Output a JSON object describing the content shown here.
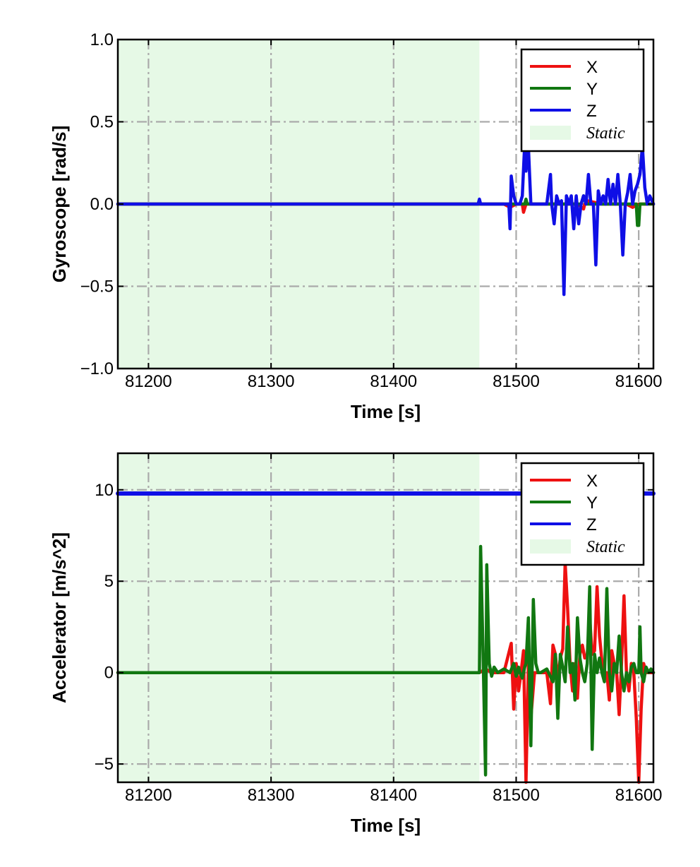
{
  "chart_data": [
    {
      "type": "line",
      "id": "gyro",
      "xlabel": "Time [s]",
      "ylabel": "Gyroscope [rad/s]",
      "xlim": [
        81175,
        81612
      ],
      "ylim": [
        -1.0,
        1.0
      ],
      "xticks": [
        81200,
        81300,
        81400,
        81500,
        81600
      ],
      "xtick_labels": [
        "81200",
        "81300",
        "81400",
        "81500",
        "81600"
      ],
      "yticks": [
        1.0,
        0.5,
        0.0,
        -0.5,
        -1.0
      ],
      "ytick_labels": [
        "1.0",
        "0.5",
        "0.0",
        "−0.5",
        "−1.0"
      ],
      "grid": true,
      "static_region": [
        81175,
        81470
      ],
      "legend": {
        "placement": "upper right",
        "entries": [
          {
            "label": "X",
            "color": "#ee1111",
            "kind": "line"
          },
          {
            "label": "Y",
            "color": "#117711",
            "kind": "line"
          },
          {
            "label": "Z",
            "color": "#0f0fe6",
            "kind": "line"
          },
          {
            "label": "Static",
            "color": "#e6f9e6",
            "kind": "patch"
          }
        ]
      },
      "series": [
        {
          "name": "X",
          "color": "#ee1111",
          "x": [
            81175,
            81470,
            81490,
            81495,
            81500,
            81505,
            81506,
            81508,
            81525,
            81540,
            81550,
            81555,
            81556,
            81558,
            81570,
            81590,
            81595,
            81600,
            81612
          ],
          "values": [
            0,
            0,
            0,
            -0.02,
            0,
            0,
            -0.05,
            0,
            0,
            0,
            0,
            -0.03,
            0,
            0.02,
            0,
            0,
            -0.02,
            0,
            0
          ]
        },
        {
          "name": "Y",
          "color": "#117711",
          "x": [
            81175,
            81470,
            81500,
            81507,
            81508,
            81509,
            81530,
            81545,
            81553,
            81555,
            81557,
            81590,
            81598,
            81599,
            81600,
            81601,
            81612
          ],
          "values": [
            0,
            0,
            0,
            0,
            0.03,
            0,
            0,
            0,
            0,
            0.05,
            0,
            0,
            0,
            -0.13,
            -0.13,
            0,
            0
          ]
        },
        {
          "name": "Z",
          "color": "#0f0fe6",
          "x": [
            81175,
            81469,
            81470,
            81471,
            81490,
            81494,
            81495,
            81496,
            81498,
            81500,
            81503,
            81505,
            81507,
            81508,
            81510,
            81512,
            81520,
            81525,
            81528,
            81529,
            81531,
            81533,
            81535,
            81537,
            81539,
            81541,
            81543,
            81545,
            81547,
            81549,
            81551,
            81553,
            81555,
            81557,
            81559,
            81561,
            81563,
            81565,
            81567,
            81569,
            81571,
            81573,
            81575,
            81577,
            81579,
            81581,
            81583,
            81585,
            81587,
            81589,
            81591,
            81593,
            81595,
            81597,
            81599,
            81601,
            81603,
            81605,
            81607,
            81609,
            81612
          ],
          "values": [
            0,
            0,
            0.03,
            0,
            0,
            0,
            -0.15,
            0.17,
            0.05,
            0,
            0,
            0.05,
            0.37,
            0.2,
            0.35,
            0,
            0,
            0,
            0.18,
            0,
            -0.12,
            0.05,
            0,
            0.02,
            -0.55,
            0.05,
            0,
            0.05,
            -0.15,
            0.05,
            -0.12,
            0,
            0.05,
            0,
            0.18,
            0,
            0,
            -0.37,
            0.08,
            0,
            0.05,
            0,
            0.15,
            0,
            0.12,
            0,
            0.18,
            0,
            -0.31,
            0,
            0.07,
            0.18,
            0,
            0.08,
            0.12,
            0.18,
            0.35,
            0.1,
            0,
            0.05,
            0
          ]
        }
      ]
    },
    {
      "type": "line",
      "id": "accel",
      "xlabel": "Time [s]",
      "ylabel": "Accelerator [m/s^2]",
      "xlim": [
        81175,
        81612
      ],
      "ylim": [
        -6.0,
        12.0
      ],
      "xticks": [
        81200,
        81300,
        81400,
        81500,
        81600
      ],
      "xtick_labels": [
        "81200",
        "81300",
        "81400",
        "81500",
        "81600"
      ],
      "yticks": [
        10,
        5,
        0,
        -5
      ],
      "ytick_labels": [
        "10",
        "5",
        "0",
        "−5"
      ],
      "grid": true,
      "static_region": [
        81175,
        81470
      ],
      "legend": {
        "placement": "upper right",
        "entries": [
          {
            "label": "X",
            "color": "#ee1111",
            "kind": "line"
          },
          {
            "label": "Y",
            "color": "#117711",
            "kind": "line"
          },
          {
            "label": "Z",
            "color": "#0f0fe6",
            "kind": "line"
          },
          {
            "label": "Static",
            "color": "#e6f9e6",
            "kind": "patch"
          }
        ]
      },
      "series": [
        {
          "name": "X",
          "color": "#ee1111",
          "x": [
            81175,
            81470,
            81475,
            81480,
            81490,
            81496,
            81498,
            81500,
            81502,
            81504,
            81506,
            81508,
            81510,
            81512,
            81515,
            81520,
            81525,
            81528,
            81530,
            81532,
            81534,
            81536,
            81538,
            81540,
            81542,
            81544,
            81546,
            81548,
            81550,
            81552,
            81554,
            81556,
            81558,
            81560,
            81562,
            81564,
            81566,
            81568,
            81570,
            81572,
            81574,
            81576,
            81578,
            81580,
            81582,
            81584,
            81586,
            81588,
            81590,
            81592,
            81594,
            81596,
            81598,
            81600,
            81602,
            81604,
            81606,
            81608,
            81612
          ],
          "values": [
            0,
            0,
            0.2,
            0,
            0,
            1.6,
            -2.0,
            0.5,
            -1.0,
            0,
            1.2,
            -6.0,
            0.5,
            -2.5,
            0,
            0,
            0,
            -1.7,
            1.5,
            1.0,
            -0.5,
            0.8,
            1.3,
            6.0,
            3.5,
            0.5,
            -1.0,
            0.5,
            -1.4,
            1.0,
            1.5,
            0.8,
            1.0,
            3.0,
            1.0,
            1.2,
            4.7,
            2.0,
            0.6,
            0,
            0,
            -1.5,
            1.2,
            0.5,
            0,
            -2.3,
            0.5,
            4.2,
            0,
            -1.0,
            0.5,
            0,
            -2.5,
            -6.0,
            -2.0,
            0.5,
            0,
            0,
            0
          ]
        },
        {
          "name": "Y",
          "color": "#117711",
          "x": [
            81175,
            81468,
            81470,
            81471,
            81473,
            81475,
            81476,
            81478,
            81480,
            81482,
            81485,
            81490,
            81495,
            81498,
            81500,
            81502,
            81503,
            81505,
            81507,
            81508,
            81510,
            81512,
            81514,
            81516,
            81518,
            81520,
            81525,
            81530,
            81532,
            81534,
            81536,
            81538,
            81540,
            81542,
            81544,
            81546,
            81548,
            81550,
            81552,
            81554,
            81556,
            81558,
            81560,
            81562,
            81564,
            81566,
            81568,
            81570,
            81572,
            81574,
            81576,
            81578,
            81580,
            81582,
            81584,
            81586,
            81588,
            81590,
            81592,
            81594,
            81596,
            81598,
            81600,
            81601,
            81602,
            81604,
            81606,
            81608,
            81610,
            81612
          ],
          "values": [
            0,
            0,
            0,
            6.9,
            1.0,
            -5.6,
            5.9,
            0.5,
            -0.2,
            0.3,
            0,
            0.2,
            0,
            0.5,
            -0.2,
            0.3,
            0,
            -0.3,
            0.3,
            0.5,
            3.0,
            -4.0,
            4.0,
            0.5,
            0,
            0,
            0.2,
            -0.5,
            1.0,
            -2.5,
            1.0,
            0.3,
            -0.5,
            2.5,
            0,
            0.5,
            -1.5,
            3.0,
            0.8,
            0,
            -0.5,
            0.5,
            4.7,
            -4.2,
            1.0,
            0,
            0.8,
            0,
            -0.5,
            4.6,
            0,
            -1.0,
            0.5,
            0,
            2.0,
            0,
            -1.0,
            0,
            -0.5,
            0.3,
            0.5,
            0,
            0,
            2.5,
            0,
            -0.5,
            0.3,
            0,
            0.2,
            0
          ]
        },
        {
          "name": "Z",
          "color": "#0f0fe6",
          "x": [
            81175,
            81612
          ],
          "values": [
            9.8,
            9.8
          ]
        }
      ]
    }
  ]
}
